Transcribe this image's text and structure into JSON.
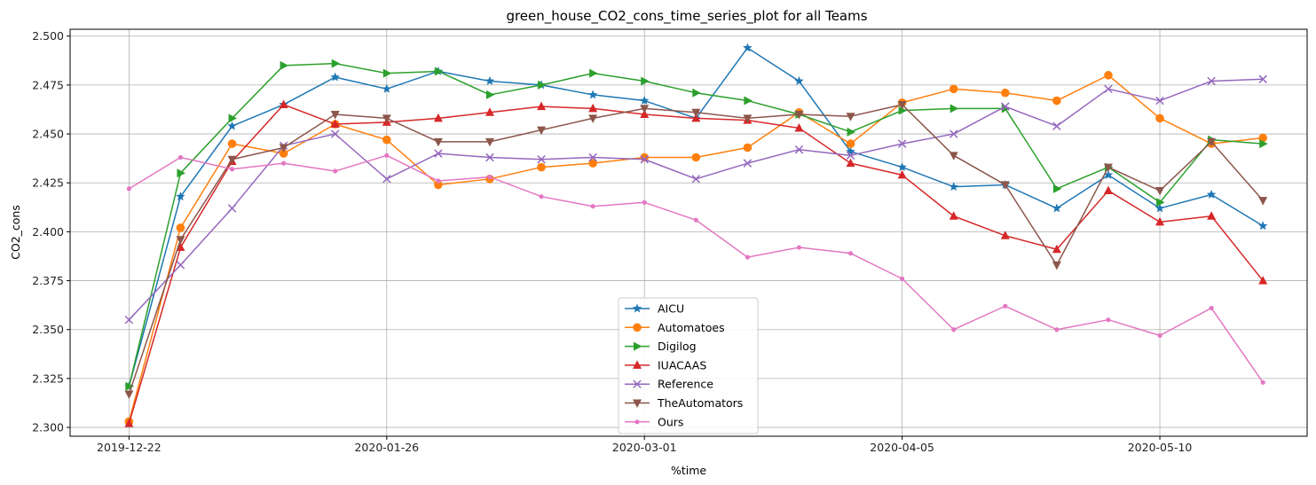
{
  "chart_data": {
    "type": "line",
    "title": "green_house_CO2_cons_time_series_plot for all Teams",
    "xlabel": "%time",
    "ylabel": "CO2_cons",
    "x_ticks": [
      "2019-12-22",
      "2020-01-26",
      "2020-03-01",
      "2020-04-05",
      "2020-05-10"
    ],
    "x": [
      "2019-12-22",
      "2019-12-29",
      "2020-01-05",
      "2020-01-12",
      "2020-01-19",
      "2020-01-26",
      "2020-02-02",
      "2020-02-09",
      "2020-02-16",
      "2020-02-23",
      "2020-03-01",
      "2020-03-08",
      "2020-03-15",
      "2020-03-22",
      "2020-03-29",
      "2020-04-05",
      "2020-04-12",
      "2020-04-19",
      "2020-04-26",
      "2020-05-03",
      "2020-05-10",
      "2020-05-17",
      "2020-05-24"
    ],
    "y_ticks": [
      "2.300",
      "2.325",
      "2.350",
      "2.375",
      "2.400",
      "2.425",
      "2.450",
      "2.475",
      "2.500"
    ],
    "xlim": [
      "2019-12-14",
      "2020-05-30"
    ],
    "ylim": [
      2.2955,
      2.5035
    ],
    "grid": true,
    "legend_position": "lower-center",
    "series": [
      {
        "name": "AICU",
        "color": "#1f77b4",
        "marker": "star",
        "values": [
          2.321,
          2.418,
          2.454,
          2.465,
          2.479,
          2.473,
          2.482,
          2.477,
          2.475,
          2.47,
          2.467,
          2.458,
          2.494,
          2.477,
          2.441,
          2.433,
          2.423,
          2.424,
          2.412,
          2.429,
          2.412,
          2.419,
          2.403
        ]
      },
      {
        "name": "Automatoes",
        "color": "#ff7f0e",
        "marker": "circle",
        "values": [
          2.303,
          2.402,
          2.445,
          2.44,
          2.455,
          2.447,
          2.424,
          2.427,
          2.433,
          2.435,
          2.438,
          2.438,
          2.443,
          2.461,
          2.445,
          2.466,
          2.473,
          2.471,
          2.467,
          2.48,
          2.458,
          2.445,
          2.448
        ]
      },
      {
        "name": "Digilog",
        "color": "#2ca02c",
        "marker": "triangle-right",
        "values": [
          2.321,
          2.43,
          2.458,
          2.485,
          2.486,
          2.481,
          2.482,
          2.47,
          2.475,
          2.481,
          2.477,
          2.471,
          2.467,
          2.46,
          2.451,
          2.462,
          2.463,
          2.463,
          2.422,
          2.433,
          2.415,
          2.447,
          2.445
        ]
      },
      {
        "name": "IUACAAS",
        "color": "#d62728",
        "marker": "triangle-up",
        "values": [
          2.302,
          2.392,
          2.436,
          2.465,
          2.455,
          2.456,
          2.458,
          2.461,
          2.464,
          2.463,
          2.46,
          2.458,
          2.457,
          2.453,
          2.435,
          2.429,
          2.408,
          2.398,
          2.391,
          2.421,
          2.405,
          2.408,
          2.375
        ]
      },
      {
        "name": "Reference",
        "color": "#9467bd",
        "marker": "x",
        "values": [
          2.355,
          2.383,
          2.412,
          2.444,
          2.45,
          2.427,
          2.44,
          2.438,
          2.437,
          2.438,
          2.437,
          2.427,
          2.435,
          2.442,
          2.439,
          2.445,
          2.45,
          2.464,
          2.454,
          2.473,
          2.467,
          2.477,
          2.478
        ]
      },
      {
        "name": "TheAutomators",
        "color": "#8c564b",
        "marker": "triangle-down",
        "values": [
          2.317,
          2.396,
          2.437,
          2.443,
          2.46,
          2.458,
          2.446,
          2.446,
          2.452,
          2.458,
          2.463,
          2.461,
          2.458,
          2.46,
          2.459,
          2.465,
          2.439,
          2.424,
          2.383,
          2.433,
          2.421,
          2.446,
          2.416
        ]
      },
      {
        "name": "Ours",
        "color": "#e377c2",
        "marker": "dot",
        "values": [
          2.422,
          2.438,
          2.432,
          2.435,
          2.431,
          2.439,
          2.426,
          2.428,
          2.418,
          2.413,
          2.415,
          2.406,
          2.387,
          2.392,
          2.389,
          2.376,
          2.35,
          2.362,
          2.35,
          2.355,
          2.347,
          2.361,
          2.323
        ]
      }
    ]
  }
}
